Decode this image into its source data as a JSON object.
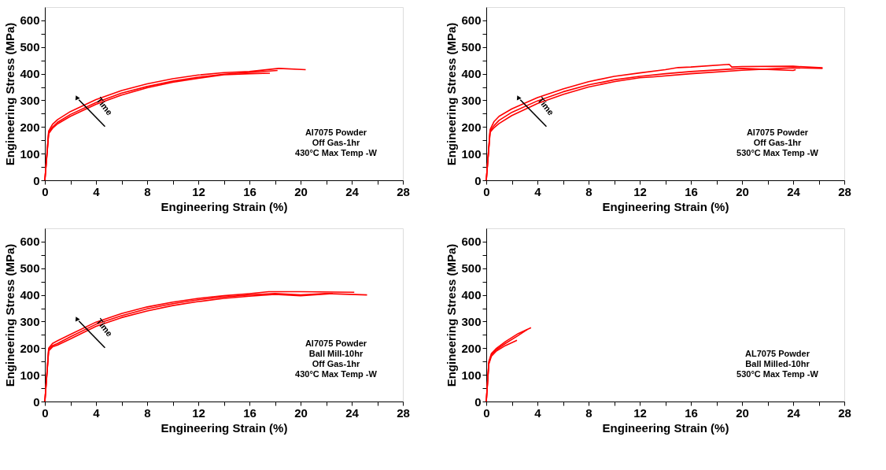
{
  "chart_data": [
    {
      "type": "line",
      "xlabel": "Engineering Strain (%)",
      "ylabel": "Engineering Stress (MPa)",
      "xlim": [
        0,
        28
      ],
      "ylim": [
        0,
        650
      ],
      "line_style": "solid",
      "xticks": [
        0,
        {
          "value": 2,
          "label": null
        },
        4,
        {
          "value": 6,
          "label": null
        },
        8,
        {
          "value": 10,
          "label": null
        },
        12,
        {
          "value": 14,
          "label": null
        },
        16,
        {
          "value": 18,
          "label": null
        },
        20,
        {
          "value": 22,
          "label": null
        },
        24,
        {
          "value": 26,
          "label": null
        },
        28
      ],
      "yticks": [
        0,
        {
          "value": 50,
          "label": null
        },
        100,
        {
          "value": 150,
          "label": null
        },
        200,
        {
          "value": 250,
          "label": null
        },
        300,
        {
          "value": 350,
          "label": null
        },
        400,
        {
          "value": 450,
          "label": null
        },
        500,
        {
          "value": 550,
          "label": null
        },
        600
      ],
      "annotations": [
        "Time",
        "Al7075 Powder\nOff Gas-1hr\n430°C Max Temp -W"
      ],
      "series": [
        {
          "color": "#ff0000",
          "x": [
            0,
            0.3,
            0.6,
            1,
            2,
            4,
            6,
            8,
            10,
            12,
            14,
            16,
            18.3,
            20.4
          ],
          "values": [
            0,
            185,
            210,
            228,
            258,
            303,
            337,
            362,
            381,
            395,
            404,
            408,
            420,
            415
          ]
        },
        {
          "color": "#ff0000",
          "x": [
            0,
            0.3,
            0.6,
            1,
            2,
            4,
            6,
            8,
            10,
            12,
            14,
            16,
            18.2
          ],
          "values": [
            0,
            180,
            200,
            218,
            247,
            292,
            327,
            352,
            372,
            387,
            398,
            405,
            412
          ]
        },
        {
          "color": "#ff0000",
          "x": [
            0,
            0.3,
            0.6,
            1,
            2,
            4,
            6,
            8,
            10,
            12,
            14,
            16,
            17.6
          ],
          "values": [
            0,
            175,
            195,
            212,
            240,
            285,
            320,
            347,
            368,
            383,
            396,
            400,
            402
          ]
        }
      ]
    },
    {
      "type": "line",
      "xlabel": "Engineering Strain (%)",
      "ylabel": "Engineering Stress (MPa)",
      "xlim": [
        0,
        28
      ],
      "ylim": [
        0,
        650
      ],
      "line_style": "solid",
      "xticks": [
        0,
        {
          "value": 2,
          "label": null
        },
        4,
        {
          "value": 6,
          "label": null
        },
        8,
        {
          "value": 10,
          "label": null
        },
        12,
        {
          "value": 14,
          "label": null
        },
        16,
        {
          "value": 18,
          "label": null
        },
        20,
        {
          "value": 22,
          "label": null
        },
        24,
        {
          "value": 26,
          "label": null
        },
        28
      ],
      "yticks": [
        0,
        {
          "value": 50,
          "label": null
        },
        100,
        {
          "value": 150,
          "label": null
        },
        200,
        {
          "value": 250,
          "label": null
        },
        300,
        {
          "value": 350,
          "label": null
        },
        400,
        {
          "value": 450,
          "label": null
        },
        500,
        {
          "value": 550,
          "label": null
        },
        600
      ],
      "annotations": [
        "Time",
        "Al7075 Powder\nOff Gas-1hr\n530°C Max Temp  -W"
      ],
      "series": [
        {
          "color": "#ff0000",
          "x": [
            0,
            0.3,
            0.6,
            1,
            2,
            4,
            6,
            8,
            10,
            12,
            14,
            15,
            16,
            19,
            19.2,
            20,
            24,
            26.3
          ],
          "values": [
            0,
            190,
            220,
            240,
            268,
            310,
            343,
            370,
            390,
            403,
            415,
            423,
            425,
            435,
            425,
            427,
            428,
            422
          ]
        },
        {
          "color": "#ff0000",
          "x": [
            0,
            0.3,
            0.6,
            1,
            2,
            4,
            6,
            8,
            10,
            12,
            14,
            16,
            20,
            24,
            24.2
          ],
          "values": [
            0,
            185,
            205,
            225,
            255,
            298,
            332,
            358,
            377,
            390,
            400,
            408,
            420,
            412,
            415
          ]
        },
        {
          "color": "#ff0000",
          "x": [
            0,
            0.3,
            0.6,
            1,
            2,
            4,
            6,
            8,
            10,
            12,
            13,
            16,
            20,
            24,
            26.3
          ],
          "values": [
            0,
            180,
            197,
            213,
            243,
            288,
            322,
            350,
            370,
            385,
            388,
            400,
            413,
            422,
            420
          ]
        }
      ]
    },
    {
      "type": "line",
      "xlabel": "Engineering Strain (%)",
      "ylabel": "Engineering Stress (MPa)",
      "xlim": [
        0,
        28
      ],
      "ylim": [
        0,
        650
      ],
      "line_style": "solid",
      "xticks": [
        0,
        {
          "value": 2,
          "label": null
        },
        4,
        {
          "value": 6,
          "label": null
        },
        8,
        {
          "value": 10,
          "label": null
        },
        12,
        {
          "value": 14,
          "label": null
        },
        16,
        {
          "value": 18,
          "label": null
        },
        20,
        {
          "value": 22,
          "label": null
        },
        24,
        {
          "value": 26,
          "label": null
        },
        28
      ],
      "yticks": [
        0,
        {
          "value": 50,
          "label": null
        },
        100,
        {
          "value": 150,
          "label": null
        },
        200,
        {
          "value": 250,
          "label": null
        },
        300,
        {
          "value": 350,
          "label": null
        },
        400,
        {
          "value": 450,
          "label": null
        },
        500,
        {
          "value": 550,
          "label": null
        },
        600
      ],
      "annotations": [
        "Time",
        "Al7075 Powder\nBall Mill-10hr\nOff Gas-1hr\n430°C Max Temp -W"
      ],
      "series": [
        {
          "color": "#ff0000",
          "x": [
            0,
            0.3,
            0.6,
            1,
            2,
            4,
            6,
            8,
            10,
            12,
            14,
            16,
            17.5,
            20,
            24.2
          ],
          "values": [
            0,
            200,
            218,
            228,
            252,
            298,
            330,
            355,
            373,
            387,
            397,
            405,
            412,
            412,
            410
          ]
        },
        {
          "color": "#ff0000",
          "x": [
            0,
            0.3,
            0.6,
            1,
            2,
            4,
            6,
            8,
            10,
            12,
            14,
            16,
            18,
            20,
            22,
            25.2
          ],
          "values": [
            0,
            195,
            210,
            218,
            243,
            290,
            322,
            348,
            367,
            382,
            392,
            400,
            405,
            400,
            405,
            400
          ]
        },
        {
          "color": "#ff0000",
          "x": [
            0,
            0.3,
            0.6,
            1,
            2,
            4,
            6,
            8,
            10,
            12,
            14,
            16,
            18,
            20,
            22.5
          ],
          "values": [
            0,
            190,
            205,
            212,
            235,
            282,
            315,
            340,
            360,
            375,
            387,
            395,
            402,
            397,
            405
          ]
        }
      ]
    },
    {
      "type": "line",
      "xlabel": "Engineering Strain (%)",
      "ylabel": "Engineering Stress (MPa)",
      "xlim": [
        0,
        28
      ],
      "ylim": [
        0,
        650
      ],
      "line_style": "solid",
      "xticks": [
        0,
        {
          "value": 2,
          "label": null
        },
        4,
        {
          "value": 6,
          "label": null
        },
        8,
        {
          "value": 10,
          "label": null
        },
        12,
        {
          "value": 14,
          "label": null
        },
        16,
        {
          "value": 18,
          "label": null
        },
        20,
        {
          "value": 22,
          "label": null
        },
        24,
        {
          "value": 26,
          "label": null
        },
        28
      ],
      "yticks": [
        0,
        {
          "value": 50,
          "label": null
        },
        100,
        {
          "value": 150,
          "label": null
        },
        200,
        {
          "value": 250,
          "label": null
        },
        300,
        {
          "value": 350,
          "label": null
        },
        400,
        {
          "value": 450,
          "label": null
        },
        500,
        {
          "value": 550,
          "label": null
        },
        600
      ],
      "annotations": [
        "AL7075 Powder\nBall Milled-10hr\n530°C Max Temp -W"
      ],
      "series": [
        {
          "color": "#ff0000",
          "x": [
            0,
            0.2,
            0.4,
            0.8,
            1.5,
            2.5,
            3.5
          ],
          "values": [
            0,
            150,
            180,
            200,
            225,
            255,
            277
          ]
        },
        {
          "color": "#ff0000",
          "x": [
            0,
            0.2,
            0.4,
            0.8,
            1.5,
            2.4
          ],
          "values": [
            0,
            140,
            170,
            190,
            210,
            230
          ]
        },
        {
          "color": "#ff0000",
          "x": [
            0,
            0.2,
            0.4,
            0.8,
            1.5,
            2.5,
            3.2
          ],
          "values": [
            0,
            145,
            175,
            195,
            218,
            248,
            270
          ]
        }
      ]
    }
  ]
}
